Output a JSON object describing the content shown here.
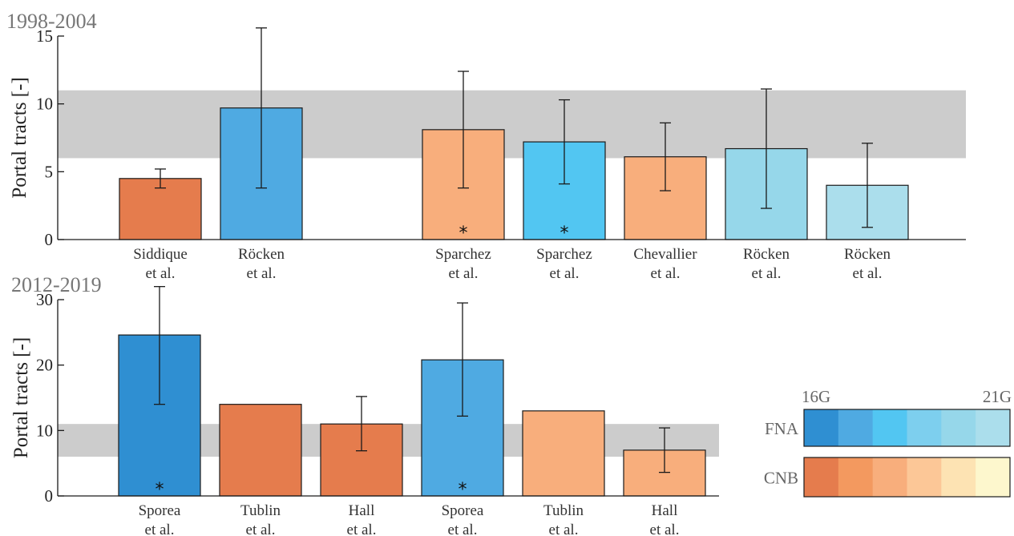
{
  "legend": {
    "range_start": "16G",
    "range_end": "21G",
    "rows": [
      {
        "label": "FNA",
        "colors": [
          "#2f8fd2",
          "#4faae2",
          "#52c6f2",
          "#7dcfee",
          "#96d7ea",
          "#abdeec"
        ]
      },
      {
        "label": "CNB",
        "colors": [
          "#e57c4d",
          "#f3995f",
          "#f8ae7c",
          "#fcc797",
          "#fde3b3",
          "#fdf7cd"
        ]
      }
    ]
  },
  "chart_data": [
    {
      "type": "bar",
      "title": "1998-2004",
      "ylabel": "Portal tracts [-]",
      "ylim": [
        0,
        15
      ],
      "yticks": [
        0,
        5,
        10,
        15
      ],
      "reference_band": [
        6,
        11
      ],
      "slots": 9,
      "categories": [
        {
          "slot": 0,
          "line1": "Siddique",
          "line2": "et al.",
          "value": 4.5,
          "err": [
            3.8,
            5.2
          ],
          "color": "#e57c4d",
          "star": false
        },
        {
          "slot": 1,
          "line1": "Röcken",
          "line2": "et al.",
          "value": 9.7,
          "err": [
            3.8,
            15.6
          ],
          "color": "#4faae2",
          "star": false
        },
        {
          "slot": 3,
          "line1": "Sparchez",
          "line2": "et al.",
          "value": 8.1,
          "err": [
            3.8,
            12.4
          ],
          "color": "#f8ae7c",
          "star": true
        },
        {
          "slot": 4,
          "line1": "Sparchez",
          "line2": "et al.",
          "value": 7.2,
          "err": [
            4.1,
            10.3
          ],
          "color": "#52c6f2",
          "star": true
        },
        {
          "slot": 5,
          "line1": "Chevallier",
          "line2": "et al.",
          "value": 6.1,
          "err": [
            3.6,
            8.6
          ],
          "color": "#f8ae7c",
          "star": false
        },
        {
          "slot": 6,
          "line1": "Röcken",
          "line2": "et al.",
          "value": 6.7,
          "err": [
            2.3,
            11.1
          ],
          "color": "#96d7ea",
          "star": false
        },
        {
          "slot": 7,
          "line1": "Röcken",
          "line2": "et al.",
          "value": 4.0,
          "err": [
            0.9,
            7.1
          ],
          "color": "#abdeec",
          "star": false
        }
      ]
    },
    {
      "type": "bar",
      "title": "2012-2019",
      "ylabel": "Portal tracts [-]",
      "ylim": [
        0,
        30
      ],
      "yticks": [
        0,
        10,
        20,
        30
      ],
      "reference_band": [
        6,
        11
      ],
      "slots": 6,
      "categories": [
        {
          "slot": 0,
          "line1": "Sporea",
          "line2": "et al.",
          "value": 24.6,
          "err": [
            14.0,
            32.0
          ],
          "color": "#2f8fd2",
          "star": true
        },
        {
          "slot": 1,
          "line1": "Tublin",
          "line2": "et al.",
          "value": 14.0,
          "err": null,
          "color": "#e57c4d",
          "star": false
        },
        {
          "slot": 2,
          "line1": "Hall",
          "line2": "et al.",
          "value": 11.0,
          "err": [
            6.9,
            15.2
          ],
          "color": "#e57c4d",
          "star": false
        },
        {
          "slot": 3,
          "line1": "Sporea",
          "line2": "et al.",
          "value": 20.8,
          "err": [
            12.2,
            29.5
          ],
          "color": "#4faae2",
          "star": true
        },
        {
          "slot": 4,
          "line1": "Tublin",
          "line2": "et al.",
          "value": 13.0,
          "err": null,
          "color": "#f8ae7c",
          "star": false
        },
        {
          "slot": 5,
          "line1": "Hall",
          "line2": "et al.",
          "value": 7.0,
          "err": [
            3.6,
            10.4
          ],
          "color": "#f8ae7c",
          "star": false
        }
      ]
    }
  ]
}
